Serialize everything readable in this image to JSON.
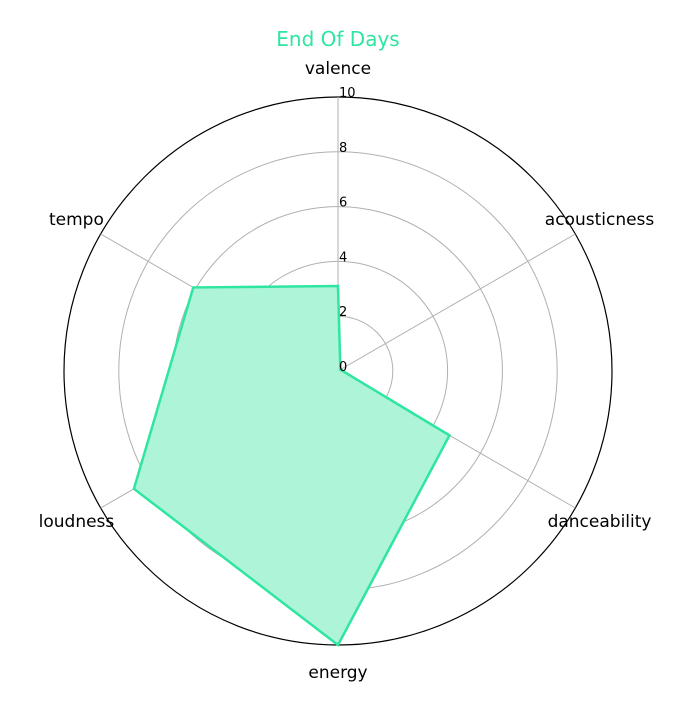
{
  "chart_data": {
    "type": "radar",
    "title": "End Of Days",
    "categories": [
      "valence",
      "acousticness",
      "danceability",
      "energy",
      "loudness",
      "tempo"
    ],
    "series": [
      {
        "values": [
          3.1,
          0.1,
          4.7,
          10.0,
          8.6,
          6.1
        ]
      }
    ],
    "rlim": [
      0,
      10
    ],
    "r_ticks": [
      "0",
      "2",
      "4",
      "6",
      "8",
      "10"
    ],
    "grid": true,
    "colors": {
      "series": "#2ee6a0",
      "fill": "#aef4d8",
      "grid": "#b0b0b0",
      "outer": "#000000",
      "title": "#2ee6a0"
    }
  }
}
